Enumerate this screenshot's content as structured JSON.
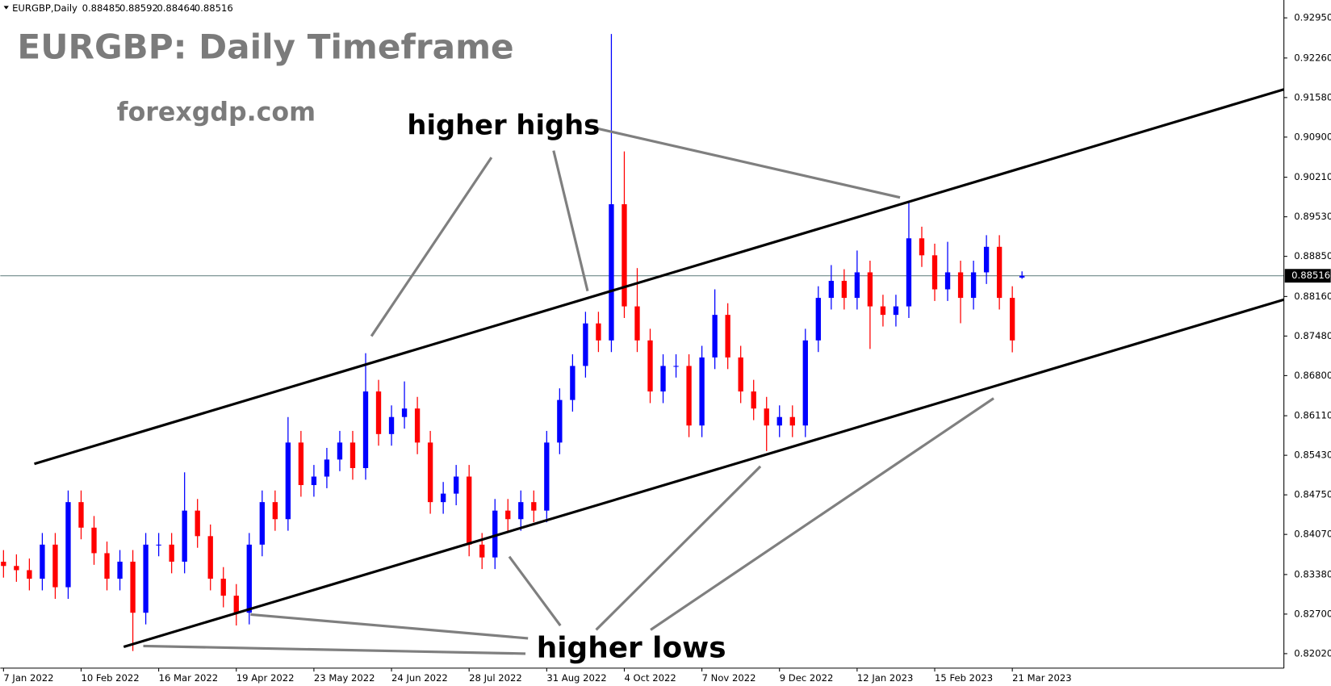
{
  "chart_data": {
    "type": "candlestick",
    "symbol": "EURGBP,Daily",
    "header_values": [
      0.88485,
      0.88592,
      0.88464,
      0.88516
    ],
    "title": "EURGBP: Daily Timeframe",
    "watermark": "forexgdp.com",
    "annotations": [
      "higher highs",
      "higher lows"
    ],
    "up_color": "#0000ff",
    "down_color": "#ff0000",
    "current_price": 0.88516,
    "xlim": [
      -1,
      396
    ],
    "xticks": [
      {
        "value": 0,
        "label": "7 Jan 2022"
      },
      {
        "value": 24,
        "label": "10 Feb 2022"
      },
      {
        "value": 48,
        "label": "16 Mar 2022"
      },
      {
        "value": 72,
        "label": "19 Apr 2022"
      },
      {
        "value": 96,
        "label": "23 May 2022"
      },
      {
        "value": 120,
        "label": "24 Jun 2022"
      },
      {
        "value": 144,
        "label": "28 Jul 2022"
      },
      {
        "value": 168,
        "label": "31 Aug 2022"
      },
      {
        "value": 192,
        "label": "4 Oct 2022"
      },
      {
        "value": 216,
        "label": "7 Nov 2022"
      },
      {
        "value": 240,
        "label": "9 Dec 2022"
      },
      {
        "value": 264,
        "label": "12 Jan 2023"
      },
      {
        "value": 288,
        "label": "15 Feb 2023"
      },
      {
        "value": 312,
        "label": "21 Mar 2023"
      }
    ],
    "ylim": [
      0.81771,
      0.93257
    ],
    "yticks": [
      {
        "value": 0.8202,
        "label": "0.82020"
      },
      {
        "value": 0.827,
        "label": "0.82700"
      },
      {
        "value": 0.8338,
        "label": "0.83380"
      },
      {
        "value": 0.8407,
        "label": "0.84070"
      },
      {
        "value": 0.8475,
        "label": "0.84750"
      },
      {
        "value": 0.8543,
        "label": "0.85430"
      },
      {
        "value": 0.8611,
        "label": "0.86110"
      },
      {
        "value": 0.868,
        "label": "0.86800"
      },
      {
        "value": 0.8748,
        "label": "0.87480"
      },
      {
        "value": 0.8816,
        "label": "0.88160"
      },
      {
        "value": 0.8885,
        "label": "0.88850"
      },
      {
        "value": 0.8953,
        "label": "0.89530"
      },
      {
        "value": 0.9021,
        "label": "0.90210"
      },
      {
        "value": 0.909,
        "label": "0.90900"
      },
      {
        "value": 0.9158,
        "label": "0.91580"
      },
      {
        "value": 0.9226,
        "label": "0.92260"
      },
      {
        "value": 0.9295,
        "label": "0.92950"
      }
    ],
    "candles": {
      "x": [
        0,
        4,
        8,
        12,
        16,
        20,
        24,
        28,
        32,
        36,
        40,
        44,
        48,
        52,
        56,
        60,
        64,
        68,
        72,
        76,
        80,
        84,
        88,
        92,
        96,
        100,
        104,
        108,
        112,
        116,
        120,
        124,
        128,
        132,
        136,
        140,
        144,
        148,
        152,
        156,
        160,
        164,
        168,
        172,
        176,
        180,
        184,
        188,
        192,
        196,
        200,
        204,
        208,
        212,
        216,
        220,
        224,
        228,
        232,
        236,
        240,
        244,
        248,
        252,
        256,
        260,
        264,
        268,
        272,
        276,
        280,
        284,
        288,
        292,
        296,
        300,
        304,
        308,
        312,
        315
      ],
      "open": [
        0.836,
        0.83527,
        0.83455,
        0.83308,
        0.83894,
        0.83162,
        0.84625,
        0.84186,
        0.83747,
        0.83308,
        0.83601,
        0.82723,
        0.83894,
        0.83894,
        0.83601,
        0.84479,
        0.8404,
        0.83308,
        0.83016,
        0.82723,
        0.83894,
        0.84625,
        0.84332,
        0.85649,
        0.84918,
        0.85064,
        0.85357,
        0.85649,
        0.8521,
        0.86527,
        0.85795,
        0.86088,
        0.86234,
        0.85649,
        0.84625,
        0.84771,
        0.85064,
        0.83894,
        0.83674,
        0.84479,
        0.84332,
        0.84625,
        0.84479,
        0.85649,
        0.86381,
        0.86966,
        0.87697,
        0.87405,
        0.89746,
        0.8799,
        0.87405,
        0.86527,
        0.86966,
        0.86966,
        0.85942,
        0.87112,
        0.87844,
        0.87112,
        0.86527,
        0.86234,
        0.85942,
        0.86088,
        0.85942,
        0.87405,
        0.88136,
        0.88429,
        0.88136,
        0.88575,
        0.8799,
        0.87844,
        0.8799,
        0.8916,
        0.88868,
        0.88283,
        0.88575,
        0.88136,
        0.88575,
        0.89014,
        0.88136,
        0.88485
      ],
      "high": [
        0.838,
        0.83727,
        0.83655,
        0.84094,
        0.84094,
        0.84825,
        0.84825,
        0.84386,
        0.83947,
        0.83801,
        0.83801,
        0.84094,
        0.84094,
        0.84094,
        0.85137,
        0.84679,
        0.8424,
        0.83508,
        0.83216,
        0.84094,
        0.84825,
        0.84825,
        0.86088,
        0.85849,
        0.85264,
        0.85557,
        0.85849,
        0.85849,
        0.87185,
        0.86727,
        0.86288,
        0.867,
        0.86434,
        0.85849,
        0.84971,
        0.85264,
        0.85264,
        0.84094,
        0.84679,
        0.84679,
        0.84825,
        0.84825,
        0.85849,
        0.86581,
        0.87166,
        0.87897,
        0.87897,
        0.92672,
        0.90653,
        0.88648,
        0.87605,
        0.87166,
        0.87166,
        0.87166,
        0.87312,
        0.88283,
        0.88044,
        0.87312,
        0.86727,
        0.86434,
        0.86288,
        0.86288,
        0.87605,
        0.88336,
        0.887,
        0.88629,
        0.8895,
        0.88775,
        0.8819,
        0.8819,
        0.89804,
        0.8936,
        0.89068,
        0.891,
        0.88775,
        0.88775,
        0.89214,
        0.89214,
        0.88336,
        0.88592
      ],
      "low": [
        0.83327,
        0.83255,
        0.83108,
        0.83108,
        0.82962,
        0.82962,
        0.83986,
        0.83547,
        0.83108,
        0.83108,
        0.82065,
        0.82523,
        0.83694,
        0.83401,
        0.83401,
        0.8384,
        0.83108,
        0.82816,
        0.82504,
        0.82523,
        0.83694,
        0.84132,
        0.84132,
        0.84718,
        0.84718,
        0.84864,
        0.85157,
        0.8501,
        0.8501,
        0.85595,
        0.85595,
        0.85888,
        0.85449,
        0.84425,
        0.84425,
        0.84571,
        0.83694,
        0.83474,
        0.83474,
        0.84132,
        0.84132,
        0.84279,
        0.84279,
        0.85449,
        0.86181,
        0.86766,
        0.87205,
        0.87205,
        0.8779,
        0.87205,
        0.86327,
        0.86327,
        0.86766,
        0.85742,
        0.85742,
        0.86912,
        0.86912,
        0.86327,
        0.86034,
        0.85503,
        0.85742,
        0.85742,
        0.85742,
        0.87205,
        0.87936,
        0.87936,
        0.87936,
        0.87258,
        0.87644,
        0.87644,
        0.8779,
        0.88668,
        0.88083,
        0.88083,
        0.877,
        0.87936,
        0.88375,
        0.87936,
        0.872,
        0.88464
      ],
      "close": [
        0.83527,
        0.83455,
        0.83308,
        0.83894,
        0.83162,
        0.84625,
        0.84186,
        0.83747,
        0.83308,
        0.83601,
        0.82723,
        0.83894,
        0.83894,
        0.83601,
        0.84479,
        0.8404,
        0.83308,
        0.83016,
        0.82723,
        0.83894,
        0.84625,
        0.84332,
        0.85649,
        0.84918,
        0.85064,
        0.85357,
        0.85649,
        0.8521,
        0.86527,
        0.85795,
        0.86088,
        0.86234,
        0.85649,
        0.84625,
        0.84771,
        0.85064,
        0.83894,
        0.83674,
        0.84479,
        0.84332,
        0.84625,
        0.84479,
        0.85649,
        0.86381,
        0.86966,
        0.87697,
        0.87405,
        0.89746,
        0.8799,
        0.87405,
        0.86527,
        0.86966,
        0.86966,
        0.85942,
        0.87112,
        0.87844,
        0.87112,
        0.86527,
        0.86234,
        0.85942,
        0.86088,
        0.85942,
        0.87405,
        0.88136,
        0.88429,
        0.88136,
        0.88575,
        0.8799,
        0.87844,
        0.8799,
        0.8916,
        0.88868,
        0.88283,
        0.88575,
        0.88136,
        0.88575,
        0.89014,
        0.88136,
        0.87405,
        0.88516
      ]
    }
  }
}
